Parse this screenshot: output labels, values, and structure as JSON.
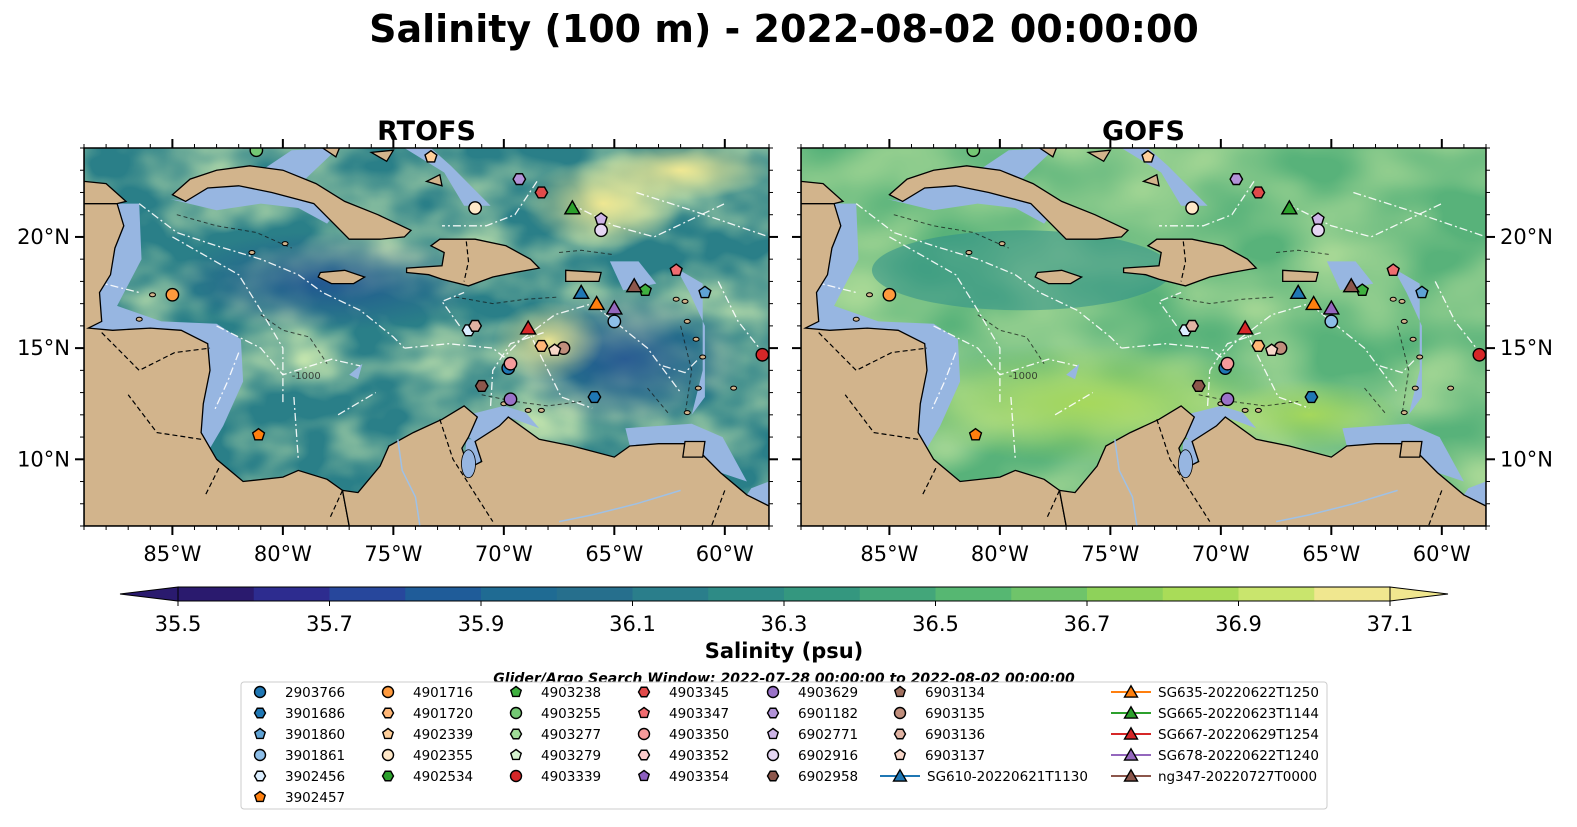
{
  "title": "Salinity (100 m) - 2022-08-02 00:00:00",
  "panels": [
    {
      "title": "RTOFS",
      "fieldStyle": "rtofs"
    },
    {
      "title": "GOFS",
      "fieldStyle": "gofs"
    }
  ],
  "map": {
    "lonRange": [
      -89,
      -58
    ],
    "latRange": [
      7,
      24
    ],
    "xTicks": [
      {
        "lon": -85,
        "label": "85°W"
      },
      {
        "lon": -80,
        "label": "80°W"
      },
      {
        "lon": -75,
        "label": "75°W"
      },
      {
        "lon": -70,
        "label": "70°W"
      },
      {
        "lon": -65,
        "label": "65°W"
      },
      {
        "lon": -60,
        "label": "60°W"
      }
    ],
    "yTicks": [
      {
        "lat": 20,
        "label": "20°N"
      },
      {
        "lat": 15,
        "label": "15°N"
      },
      {
        "lat": 10,
        "label": "10°N"
      }
    ],
    "colors": {
      "land": "#d2b48c",
      "shelf": "#97b6e1",
      "landEdge": "#000000",
      "ocean": "#2f8a85",
      "border": "#000000"
    },
    "contourLabel": "-1000"
  },
  "colorbar": {
    "label": "Salinity (psu)",
    "min": 35.5,
    "max": 37.1,
    "ticks": [
      "35.5",
      "35.7",
      "35.9",
      "36.1",
      "36.3",
      "36.5",
      "36.7",
      "36.9",
      "37.1"
    ],
    "colors": [
      "#2a1a6e",
      "#2d2c8f",
      "#27479c",
      "#1f5c99",
      "#1f6b93",
      "#266f8d",
      "#2a7e8b",
      "#2e8b86",
      "#34977f",
      "#43a67a",
      "#56b772",
      "#6fc46a",
      "#8ed25a",
      "#a9dc58",
      "#c9e56d",
      "#f0e78f"
    ]
  },
  "search_window": "Glider/Argo Search Window: 2022-07-28 00:00:00 to 2022-08-02 00:00:00",
  "legend": [
    {
      "id": "2903766",
      "marker": "circle",
      "color": "#1f77b4"
    },
    {
      "id": "3901686",
      "marker": "hexagon",
      "color": "#1f77b4"
    },
    {
      "id": "3901860",
      "marker": "pentagon",
      "color": "#5fa2d4"
    },
    {
      "id": "3901861",
      "marker": "circle",
      "color": "#8dbee8"
    },
    {
      "id": "3902456",
      "marker": "hexagon",
      "color": "#dbeeff"
    },
    {
      "id": "3902457",
      "marker": "pentagon",
      "color": "#ff7f0e"
    },
    {
      "id": "4901716",
      "marker": "circle",
      "color": "#ff9a3d"
    },
    {
      "id": "4901720",
      "marker": "hexagon",
      "color": "#ffb777"
    },
    {
      "id": "4902339",
      "marker": "pentagon",
      "color": "#ffcf9a"
    },
    {
      "id": "4902355",
      "marker": "circle",
      "color": "#ffe8c8"
    },
    {
      "id": "4902534",
      "marker": "hexagon",
      "color": "#2ca02c"
    },
    {
      "id": "4903238",
      "marker": "pentagon",
      "color": "#3fb03f"
    },
    {
      "id": "4903255",
      "marker": "circle",
      "color": "#74c874"
    },
    {
      "id": "4903277",
      "marker": "hexagon",
      "color": "#a0dc98"
    },
    {
      "id": "4903279",
      "marker": "pentagon",
      "color": "#d6f3cf"
    },
    {
      "id": "4903339",
      "marker": "circle",
      "color": "#d62728"
    },
    {
      "id": "4903345",
      "marker": "hexagon",
      "color": "#e04a4a"
    },
    {
      "id": "4903347",
      "marker": "pentagon",
      "color": "#f06c70"
    },
    {
      "id": "4903350",
      "marker": "circle",
      "color": "#f49b9b"
    },
    {
      "id": "4903352",
      "marker": "hexagon",
      "color": "#fbcaca"
    },
    {
      "id": "4903354",
      "marker": "pentagon",
      "color": "#8c5fbf"
    },
    {
      "id": "4903629",
      "marker": "circle",
      "color": "#9a72c8"
    },
    {
      "id": "6901182",
      "marker": "hexagon",
      "color": "#b293d8"
    },
    {
      "id": "6902771",
      "marker": "pentagon",
      "color": "#cdb4e6"
    },
    {
      "id": "6902916",
      "marker": "circle",
      "color": "#e5d6f2"
    },
    {
      "id": "6902958",
      "marker": "hexagon",
      "color": "#8c564b"
    },
    {
      "id": "6903134",
      "marker": "pentagon",
      "color": "#a0705f"
    },
    {
      "id": "6903135",
      "marker": "circle",
      "color": "#c08e7c"
    },
    {
      "id": "6903136",
      "marker": "hexagon",
      "color": "#e0b3a3"
    },
    {
      "id": "6903137",
      "marker": "pentagon",
      "color": "#f7d6c8"
    },
    {
      "id": "SG610-20220621T1130",
      "marker": "triangle",
      "color": "#1f77b4"
    },
    {
      "id": "SG635-20220622T1250",
      "marker": "triangle",
      "color": "#ff7f0e"
    },
    {
      "id": "SG665-20220623T1144",
      "marker": "triangle",
      "color": "#2ca02c"
    },
    {
      "id": "SG667-20220629T1254",
      "marker": "triangle",
      "color": "#d62728"
    },
    {
      "id": "SG678-20220622T1240",
      "marker": "triangle",
      "color": "#9467bd"
    },
    {
      "id": "ng347-20220727T0000",
      "marker": "triangle",
      "color": "#8c564b"
    }
  ],
  "observations": [
    {
      "id": "4901716",
      "lon": -85.0,
      "lat": 17.4
    },
    {
      "id": "4902339",
      "lon": -73.3,
      "lat": 23.6
    },
    {
      "id": "4903255",
      "lon": -81.2,
      "lat": 23.9
    },
    {
      "id": "6901182",
      "lon": -69.3,
      "lat": 22.6
    },
    {
      "id": "4903339",
      "lon": -58.3,
      "lat": 14.7
    },
    {
      "id": "4903345",
      "lon": -68.3,
      "lat": 22.0
    },
    {
      "id": "4902355",
      "lon": -71.3,
      "lat": 21.3
    },
    {
      "id": "6902771",
      "lon": -65.6,
      "lat": 20.8
    },
    {
      "id": "6902916",
      "lon": -65.6,
      "lat": 20.3
    },
    {
      "id": "4903347",
      "lon": -62.2,
      "lat": 18.5
    },
    {
      "id": "3901860",
      "lon": -60.9,
      "lat": 17.5
    },
    {
      "id": "3901861",
      "lon": -65.0,
      "lat": 16.2
    },
    {
      "id": "3902456",
      "lon": -71.6,
      "lat": 15.8
    },
    {
      "id": "6903136",
      "lon": -71.3,
      "lat": 16.0
    },
    {
      "id": "2903766",
      "lon": -69.8,
      "lat": 14.1
    },
    {
      "id": "4903350",
      "lon": -69.7,
      "lat": 14.3
    },
    {
      "id": "6903135",
      "lon": -67.3,
      "lat": 15.0
    },
    {
      "id": "6903137",
      "lon": -67.7,
      "lat": 14.9
    },
    {
      "id": "4901720",
      "lon": -68.3,
      "lat": 15.1
    },
    {
      "id": "6902958",
      "lon": -71.0,
      "lat": 13.3
    },
    {
      "id": "4903629",
      "lon": -69.7,
      "lat": 12.7
    },
    {
      "id": "3901686",
      "lon": -65.9,
      "lat": 12.8
    },
    {
      "id": "4903238",
      "lon": -63.6,
      "lat": 17.6
    },
    {
      "id": "3902457",
      "lon": -81.1,
      "lat": 11.1
    },
    {
      "id": "SG610-20220621T1130",
      "lon": -66.5,
      "lat": 17.5
    },
    {
      "id": "SG635-20220622T1250",
      "lon": -65.8,
      "lat": 17.0
    },
    {
      "id": "SG665-20220623T1144",
      "lon": -66.9,
      "lat": 21.3
    },
    {
      "id": "SG667-20220629T1254",
      "lon": -68.9,
      "lat": 15.9
    },
    {
      "id": "SG678-20220622T1240",
      "lon": -65.0,
      "lat": 16.8
    },
    {
      "id": "ng347-20220727T0000",
      "lon": -64.1,
      "lat": 17.8
    }
  ]
}
